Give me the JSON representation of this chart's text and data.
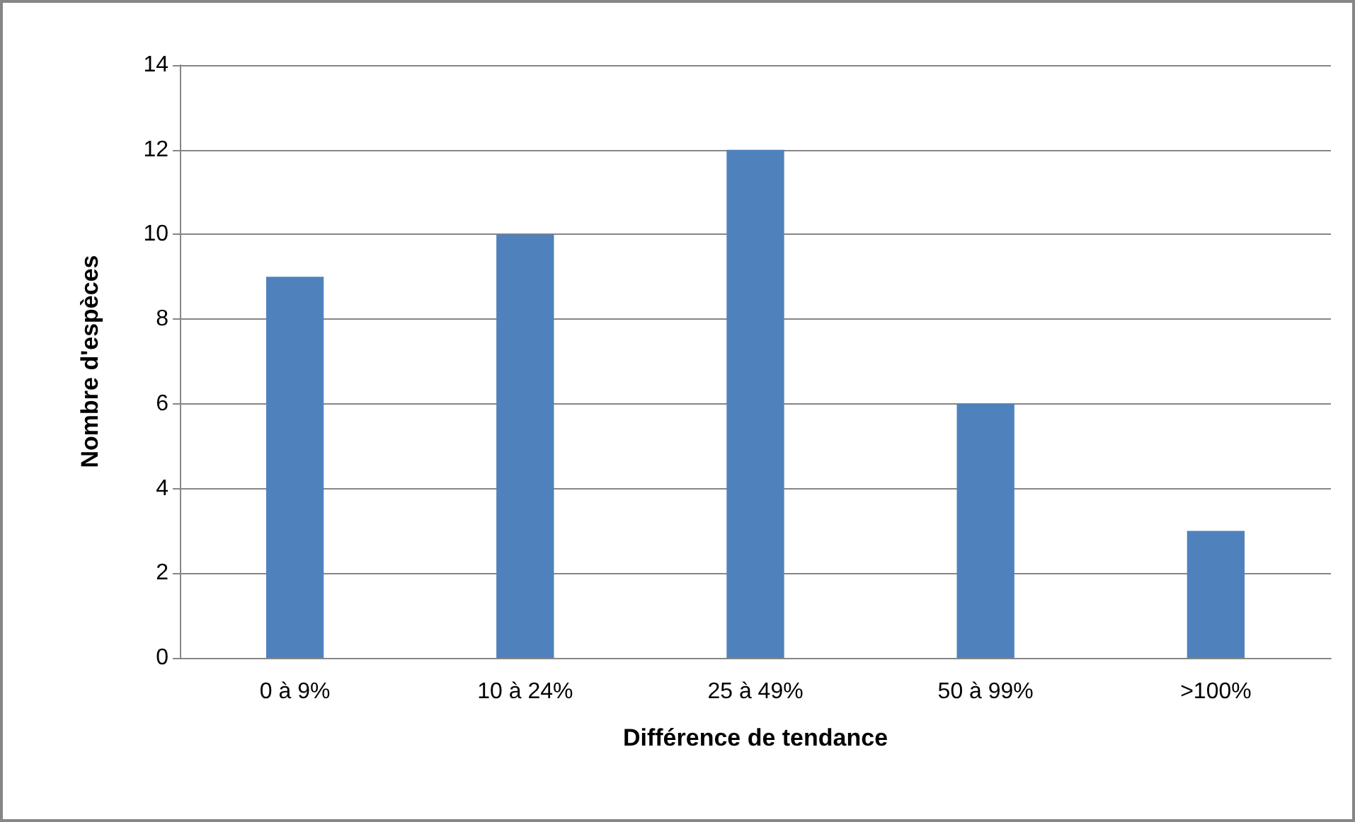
{
  "chart_data": {
    "type": "bar",
    "xlabel": "Différence de tendance",
    "ylabel": "Nombre d'espèces",
    "categories": [
      "0 à 9%",
      "10 à 24%",
      "25 à 49%",
      "50 à 99%",
      ">100%"
    ],
    "values": [
      9,
      10,
      12,
      6,
      3
    ],
    "color": "#4f81bd",
    "ylim": [
      0,
      14
    ],
    "yticks": [
      0,
      2,
      4,
      6,
      8,
      10,
      12,
      14
    ],
    "grid": "y"
  }
}
